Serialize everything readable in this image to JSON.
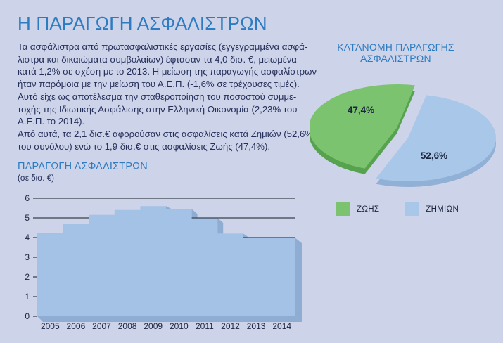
{
  "page": {
    "title": "Η ΠΑΡΑΓΩΓΗ ΑΣΦΑΛΙΣΤΡΩΝ",
    "body": "Τα ασφάλιστρα από πρωτασφαλιστικές εργασίες (εγγεγραμμένα ασφά-\nλιστρα και δικαιώματα συμβολαίων) έφτασαν τα 4,0 δισ. €, μειωμένα\nκατά 1,2% σε σχέση με το 2013. Η μείωση της παραγωγής ασφαλίστρων\nήταν παρόμοια με την μείωση του Α.Ε.Π. (-1,6% σε τρέχουσες τιμές).\nΑυτό είχε ως αποτέλεσμα την σταθεροποίηση του ποσοστού συμμε-\nτοχής της Ιδιωτικής Ασφάλισης στην Ελληνική Οικονομία (2,23% του\nΑ.Ε.Π. το 2014).\nΑπό αυτά, τα 2,1 δισ.€ αφορούσαν στις ασφαλίσεις κατά Ζημιών (52,6%\nτου συνόλου) ενώ το 1,9 δισ.€ στις ασφαλίσεις Ζωής (47,4%)."
  },
  "colors": {
    "background": "#cdd3e9",
    "heading_blue": "#2d7cc1",
    "body_navy": "#25305a",
    "axis_dark": "#39414f",
    "label_navy": "#1b2540"
  },
  "chart_data": [
    {
      "type": "area",
      "title": "ΠΑΡΑΓΩΓΗ ΑΣΦΑΛΙΣΤΡΩΝ",
      "subtitle": "(σε δισ. €)",
      "categories": [
        "2005",
        "2006",
        "2007",
        "2008",
        "2009",
        "2010",
        "2011",
        "2012",
        "2013",
        "2014"
      ],
      "values": [
        4.25,
        4.7,
        5.15,
        5.4,
        5.6,
        5.45,
        5.0,
        4.2,
        4.0,
        4.0
      ],
      "ylim": [
        0,
        6
      ],
      "yticks": [
        0,
        1,
        2,
        3,
        4,
        5,
        6
      ],
      "grid": "horizontal",
      "style_3d": true,
      "fill_color": "#a4c2e5",
      "bevel_color": "#8fadd2",
      "line_color": "#39414f",
      "tick_label_color": "#1b2540"
    },
    {
      "type": "pie",
      "title": "ΚΑΤΑΝΟΜΗ ΠΑΡΑΓΩΓΗΣ\nΑΣΦΑΛΙΣΤΡΩΝ",
      "start_angle": -78,
      "slices": [
        {
          "name": "ΖΗΜΙΩΝ",
          "value": 52.6,
          "label": "52,6%",
          "color": "#a9c7e9",
          "side_color": "#90b0d5",
          "explode": [
            0,
            0
          ],
          "label_pos": [
            177,
            131
          ]
        },
        {
          "name": "ΖΩΗΣ",
          "value": 47.4,
          "label": "47,4%",
          "color": "#7cc36f",
          "side_color": "#57a24e",
          "explode": [
            -16,
            -14
          ],
          "label_pos": [
            73,
            66
          ]
        }
      ],
      "legend": [
        {
          "label": "ΖΩΗΣ",
          "color": "#7cc36f"
        },
        {
          "label": "ΖΗΜΙΩΝ",
          "color": "#a9c7e9"
        }
      ],
      "legend_position": "bottom"
    }
  ]
}
